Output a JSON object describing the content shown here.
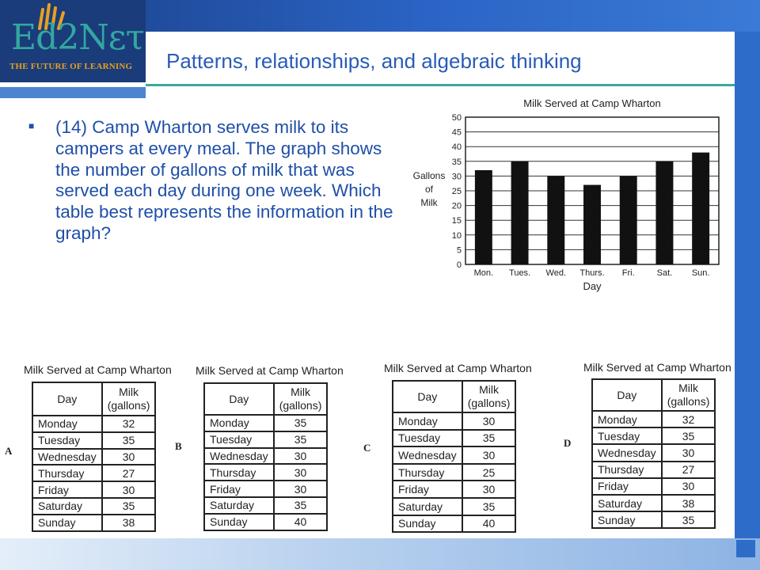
{
  "logo": {
    "main": "Ed2Nετ",
    "sub": "THE FUTURE OF LEARNING"
  },
  "slide_title": "Patterns, relationships, and algebraic thinking",
  "question": "(14) Camp Wharton serves milk to its campers at every meal. The graph shows the number of gallons of milk that was served each day during one week. Which table best represents the information in the graph?",
  "chart_data": {
    "type": "bar",
    "title": "Milk Served at Camp Wharton",
    "xlabel": "Day",
    "ylabel": "Gallons of Milk",
    "ylabel_lines": [
      "Gallons",
      "of",
      "Milk"
    ],
    "categories": [
      "Mon.",
      "Tues.",
      "Wed.",
      "Thurs.",
      "Fri.",
      "Sat.",
      "Sun."
    ],
    "values": [
      32,
      35,
      30,
      27,
      30,
      35,
      38
    ],
    "ylim": [
      0,
      50
    ],
    "yticks": [
      0,
      5,
      10,
      15,
      20,
      25,
      30,
      35,
      40,
      45,
      50
    ],
    "grid": true,
    "bar_color": "#111111"
  },
  "options": [
    {
      "letter": "A",
      "caption": "Milk Served at Camp Wharton",
      "col_day": "Day",
      "col_milk": [
        "Milk",
        "(gallons)"
      ],
      "rows": [
        {
          "day": "Monday",
          "milk": "32"
        },
        {
          "day": "Tuesday",
          "milk": "35"
        },
        {
          "day": "Wednesday",
          "milk": "30"
        },
        {
          "day": "Thursday",
          "milk": "27"
        },
        {
          "day": "Friday",
          "milk": "30"
        },
        {
          "day": "Saturday",
          "milk": "35"
        },
        {
          "day": "Sunday",
          "milk": "38"
        }
      ]
    },
    {
      "letter": "B",
      "caption": "Milk Served at Camp Wharton",
      "col_day": "Day",
      "col_milk": [
        "Milk",
        "(gallons)"
      ],
      "rows": [
        {
          "day": "Monday",
          "milk": "35"
        },
        {
          "day": "Tuesday",
          "milk": "35"
        },
        {
          "day": "Wednesday",
          "milk": "30"
        },
        {
          "day": "Thursday",
          "milk": "30"
        },
        {
          "day": "Friday",
          "milk": "30"
        },
        {
          "day": "Saturday",
          "milk": "35"
        },
        {
          "day": "Sunday",
          "milk": "40"
        }
      ]
    },
    {
      "letter": "C",
      "caption": "Milk Served at Camp Wharton",
      "col_day": "Day",
      "col_milk": [
        "Milk",
        "(gallons)"
      ],
      "rows": [
        {
          "day": "Monday",
          "milk": "30"
        },
        {
          "day": "Tuesday",
          "milk": "35"
        },
        {
          "day": "Wednesday",
          "milk": "30"
        },
        {
          "day": "Thursday",
          "milk": "25"
        },
        {
          "day": "Friday",
          "milk": "30"
        },
        {
          "day": "Saturday",
          "milk": "35"
        },
        {
          "day": "Sunday",
          "milk": "40"
        }
      ]
    },
    {
      "letter": "D",
      "caption": "Milk Served at Camp Wharton",
      "col_day": "Day",
      "col_milk": [
        "Milk",
        "(gallons)"
      ],
      "rows": [
        {
          "day": "Monday",
          "milk": "32"
        },
        {
          "day": "Tuesday",
          "milk": "35"
        },
        {
          "day": "Wednesday",
          "milk": "30"
        },
        {
          "day": "Thursday",
          "milk": "27"
        },
        {
          "day": "Friday",
          "milk": "30"
        },
        {
          "day": "Saturday",
          "milk": "38"
        },
        {
          "day": "Sunday",
          "milk": "35"
        }
      ]
    }
  ]
}
